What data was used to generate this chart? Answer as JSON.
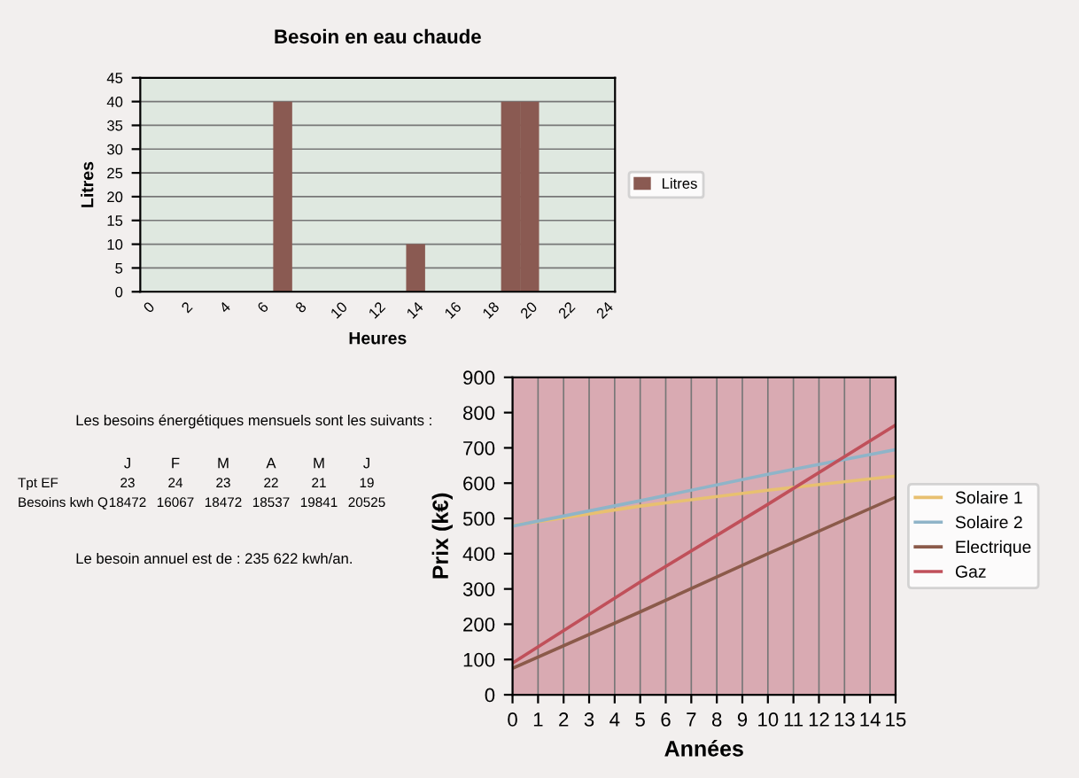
{
  "chart_data": [
    {
      "type": "bar",
      "title": "Besoin en eau chaude",
      "xlabel": "Heures",
      "ylabel": "Litres",
      "categories": [
        "0",
        null,
        "2",
        null,
        "4",
        null,
        "6",
        null,
        "8",
        null,
        "10",
        null,
        "12",
        null,
        "14",
        null,
        "16",
        null,
        "18",
        null,
        "20",
        null,
        "22",
        null,
        "24"
      ],
      "series": [
        {
          "name": "Litres",
          "color": "#8a5a52",
          "values": [
            0,
            0,
            0,
            0,
            0,
            0,
            0,
            40,
            0,
            0,
            0,
            0,
            0,
            0,
            10,
            0,
            0,
            0,
            0,
            40,
            40,
            0,
            0,
            0,
            0
          ]
        }
      ],
      "ylim": [
        0,
        45
      ],
      "yticks": [
        0,
        5,
        10,
        15,
        20,
        25,
        30,
        35,
        40,
        45
      ],
      "grid": "y",
      "legend": "right",
      "annotations": [
        "Les besoins énergétiques mensuels sont les suivants :",
        "J",
        "F",
        "M",
        "A",
        "M",
        "J",
        "Tpt EF",
        "23",
        "24",
        "23",
        "22",
        "21",
        "19",
        "Besoins kwh Q",
        "18472",
        "16067",
        "18472",
        "18537",
        "19841",
        "20525",
        "Le besoin annuel est de : 235 622 kwh/an."
      ]
    },
    {
      "type": "line",
      "xlabel": "Années",
      "ylabel": "Prix (k€)",
      "x": [
        0,
        5,
        10,
        15
      ],
      "series": [
        {
          "name": "Solaire 1",
          "color": "#e8c070",
          "values": [
            480,
            535,
            580,
            620
          ]
        },
        {
          "name": "Solaire 2",
          "color": "#8fb4c8",
          "values": [
            478,
            550,
            625,
            695
          ]
        },
        {
          "name": "Electrique",
          "color": "#8b5a4a",
          "values": [
            75,
            235,
            400,
            560
          ]
        },
        {
          "name": "Gaz",
          "color": "#c0505a",
          "values": [
            90,
            320,
            540,
            765
          ]
        }
      ],
      "xlim": [
        0,
        15
      ],
      "xticks": [
        0,
        1,
        2,
        3,
        4,
        5,
        6,
        7,
        8,
        9,
        10,
        11,
        12,
        13,
        14,
        15
      ],
      "ylim": [
        0,
        900
      ],
      "yticks": [
        0,
        100,
        200,
        300,
        400,
        500,
        600,
        700,
        800,
        900
      ],
      "grid": "x",
      "legend": "right",
      "marker": "none"
    }
  ]
}
